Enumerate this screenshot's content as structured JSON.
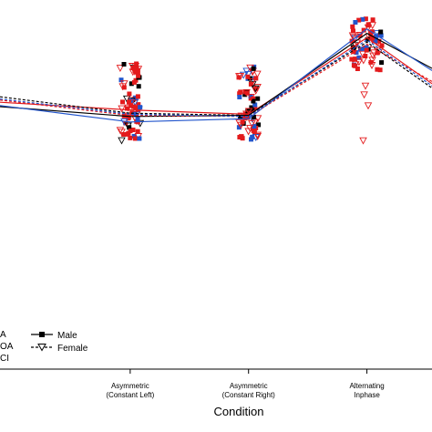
{
  "chart_data": {
    "type": "scatter",
    "xlabel": "Condition",
    "ylabel": "",
    "grid": false,
    "categories": [
      [
        "Asymmetric",
        "(Constant Left)"
      ],
      [
        "Asymmetric",
        "(Constant Right)"
      ],
      [
        "Alternating",
        "Inphase"
      ]
    ],
    "x": [
      1,
      2,
      3
    ],
    "xlim": [
      -0.1,
      3.55
    ],
    "ylim": [
      0,
      1
    ],
    "colors": {
      "red": "#e31a1c",
      "blue": "#2255cc",
      "black": "#000000"
    },
    "series": [
      {
        "color": "red",
        "sex": "Male",
        "x": [
          -0.1,
          1,
          2,
          3,
          3.55
        ],
        "values": [
          0.595,
          0.56,
          0.54,
          0.89,
          0.68
        ]
      },
      {
        "color": "black",
        "sex": "Male",
        "x": [
          -0.1,
          1,
          2,
          3,
          3.55
        ],
        "values": [
          0.575,
          0.53,
          0.535,
          0.91,
          0.75
        ]
      },
      {
        "color": "blue",
        "sex": "Male",
        "x": [
          -0.1,
          1,
          2,
          3,
          3.55
        ],
        "values": [
          0.58,
          0.505,
          0.52,
          0.93,
          0.74
        ]
      },
      {
        "color": "red",
        "sex": "Female",
        "x": [
          -0.1,
          1,
          2,
          3,
          3.55
        ],
        "values": [
          0.605,
          0.535,
          0.53,
          0.86,
          0.69
        ]
      },
      {
        "color": "black",
        "sex": "Female",
        "x": [
          -0.1,
          1,
          2,
          3,
          3.55
        ],
        "values": [
          0.62,
          0.545,
          0.535,
          0.87,
          0.66
        ]
      },
      {
        "color": "blue",
        "sex": "Female",
        "x": [
          -0.1,
          1,
          2,
          3,
          3.55
        ],
        "values": [
          0.61,
          0.54,
          0.53,
          0.88,
          0.67
        ]
      }
    ],
    "point_groups": [
      {
        "condition": 1,
        "ymin": 0.42,
        "ymax": 0.78
      },
      {
        "condition": 2,
        "ymin": 0.42,
        "ymax": 0.77
      },
      {
        "condition": 3,
        "ymin": 0.74,
        "ymax": 0.98,
        "outliers": [
          0.67,
          0.63,
          0.58,
          0.42
        ]
      }
    ],
    "legend": {
      "placement": "bottom-left",
      "groups": [
        "A",
        "OA",
        "CI"
      ],
      "sex": [
        {
          "label": "Male",
          "marker": "square",
          "line": "solid"
        },
        {
          "label": "Female",
          "marker": "triangle-down",
          "line": "dashed"
        }
      ]
    }
  }
}
